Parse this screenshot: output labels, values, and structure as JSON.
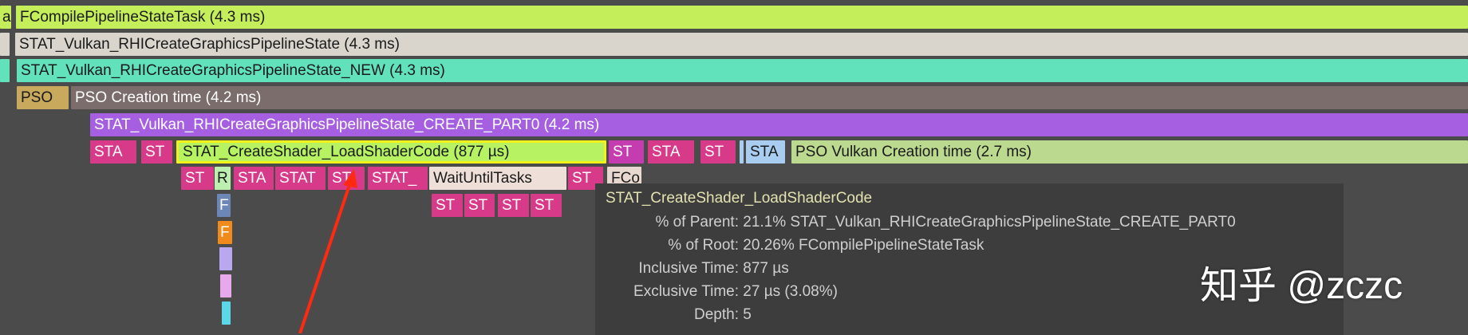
{
  "timeline": {
    "rows": [
      [
        {
          "label": "a",
          "color": "#c4ee5a"
        },
        {
          "label": "FCompilePipelineStateTask (4.3 ms)",
          "color": "#c4ee5a"
        }
      ],
      [
        {
          "label": "",
          "color": "#d9d5cd"
        },
        {
          "label": "STAT_Vulkan_RHICreateGraphicsPipelineState (4.3 ms)",
          "color": "#d9d5cd"
        }
      ],
      [
        {
          "label": "",
          "color": "#62e2bb"
        },
        {
          "label": "STAT_Vulkan_RHICreateGraphicsPipelineState_NEW (4.3 ms)",
          "color": "#62e2bb"
        }
      ],
      [
        {
          "label": "PSO",
          "color": "#c9a95b"
        },
        {
          "label": "PSO Creation time (4.2 ms)",
          "color": "#7a6d6b"
        }
      ],
      [
        {
          "label": "STAT_Vulkan_RHICreateGraphicsPipelineState_CREATE_PART0 (4.2 ms)",
          "color": "#a55fe0"
        }
      ],
      [
        {
          "label": "STA",
          "color": "#d83a8a"
        },
        {
          "label": "ST",
          "color": "#d83a8a"
        },
        {
          "label": "STAT_CreateShader_LoadShaderCode (877 µs)",
          "color": "#b6f262"
        },
        {
          "label": "ST",
          "color": "#c43cb0"
        },
        {
          "label": "STA",
          "color": "#d83a8a"
        },
        {
          "label": "ST",
          "color": "#d83a8a"
        },
        {
          "label": "",
          "color": "#a8cdf0"
        },
        {
          "label": "STA",
          "color": "#a8cdf0"
        },
        {
          "label": "PSO Vulkan Creation time (2.7 ms)",
          "color": "#bcd990"
        }
      ],
      [
        {
          "label": "ST",
          "color": "#d83a8a"
        },
        {
          "label": "R",
          "color": "#bdf0b0"
        },
        {
          "label": "STA",
          "color": "#d83a8a"
        },
        {
          "label": "STAT",
          "color": "#d83a8a"
        },
        {
          "label": "ST",
          "color": "#d83a8a"
        },
        {
          "label": "STAT_",
          "color": "#d83a8a"
        },
        {
          "label": "WaitUntilTasks",
          "color": "#eee0d8"
        },
        {
          "label": "ST",
          "color": "#d83a8a"
        },
        {
          "label": "FCo",
          "color": "#e8d8d0"
        }
      ],
      [
        {
          "label": "F",
          "color": "#6d86b8"
        },
        {
          "label": "ST",
          "color": "#d83a8a"
        },
        {
          "label": "ST",
          "color": "#d83a8a"
        },
        {
          "label": "ST",
          "color": "#d83a8a"
        },
        {
          "label": "ST",
          "color": "#d83a8a"
        }
      ],
      [
        {
          "label": "F",
          "color": "#f08a1a"
        }
      ],
      [
        {
          "label": "",
          "color": "#b9a8f0"
        }
      ],
      [
        {
          "label": "",
          "color": "#e8a8ec"
        }
      ],
      [
        {
          "label": "",
          "color": "#5ad8e8"
        }
      ]
    ],
    "selected": "STAT_CreateShader_LoadShaderCode (877 µs)"
  },
  "tooltip": {
    "title": "STAT_CreateShader_LoadShaderCode",
    "rows": [
      {
        "key": "% of Parent:",
        "value": "21.1% STAT_Vulkan_RHICreateGraphicsPipelineState_CREATE_PART0"
      },
      {
        "key": "% of Root:",
        "value": "20.26% FCompilePipelineStateTask"
      },
      {
        "key": "Inclusive Time:",
        "value": "877 µs"
      },
      {
        "key": "Exclusive Time:",
        "value": "27 µs (3.08%)"
      },
      {
        "key": "Depth:",
        "value": "5"
      }
    ]
  },
  "watermark": "知乎 @zczc",
  "annotation": {
    "arrow_color": "#ff2a10"
  }
}
